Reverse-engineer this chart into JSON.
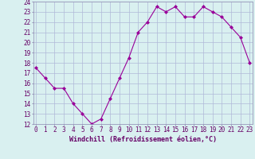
{
  "x": [
    0,
    1,
    2,
    3,
    4,
    5,
    6,
    7,
    8,
    9,
    10,
    11,
    12,
    13,
    14,
    15,
    16,
    17,
    18,
    19,
    20,
    21,
    22,
    23
  ],
  "y": [
    17.5,
    16.5,
    15.5,
    15.5,
    14.0,
    13.0,
    12.0,
    12.5,
    14.5,
    16.5,
    18.5,
    21.0,
    22.0,
    23.5,
    23.0,
    23.5,
    22.5,
    22.5,
    23.5,
    23.0,
    22.5,
    21.5,
    20.5,
    18.0
  ],
  "xlabel": "Windchill (Refroidissement éolien,°C)",
  "ylim": [
    12,
    24
  ],
  "xlim": [
    -0.3,
    23.3
  ],
  "yticks": [
    12,
    13,
    14,
    15,
    16,
    17,
    18,
    19,
    20,
    21,
    22,
    23,
    24
  ],
  "xticks": [
    0,
    1,
    2,
    3,
    4,
    5,
    6,
    7,
    8,
    9,
    10,
    11,
    12,
    13,
    14,
    15,
    16,
    17,
    18,
    19,
    20,
    21,
    22,
    23
  ],
  "line_color": "#990099",
  "marker": "D",
  "marker_size": 2.0,
  "bg_color": "#d9f0f0",
  "grid_color": "#b0b8d8",
  "border_color": "#9999bb",
  "xlabel_fontsize": 6.0,
  "tick_fontsize": 5.5,
  "xlabel_color": "#660066",
  "tick_color": "#660066"
}
